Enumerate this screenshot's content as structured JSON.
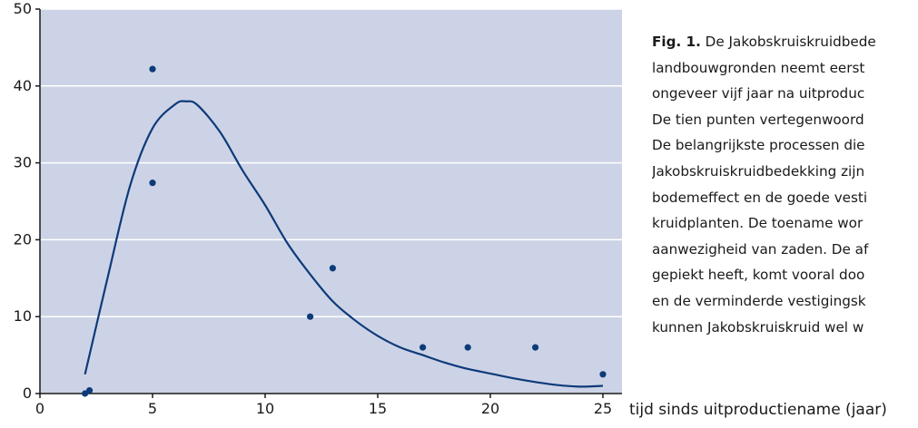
{
  "chart_data": {
    "type": "scatter",
    "xlabel": "tijd sinds uitproductiename (jaar)",
    "ylabel": "",
    "xlim": [
      0,
      26
    ],
    "ylim": [
      0,
      50
    ],
    "x_ticks": [
      0,
      5,
      10,
      15,
      20,
      25
    ],
    "y_ticks": [
      0,
      10,
      20,
      30,
      40,
      50
    ],
    "grid": "horizontal",
    "background": "#cdd3e6",
    "series": [
      {
        "kind": "points",
        "color": "#0d3b7a",
        "points": [
          {
            "x": 2,
            "y": 0
          },
          {
            "x": 2.2,
            "y": 0.4
          },
          {
            "x": 5,
            "y": 42.2
          },
          {
            "x": 5,
            "y": 27.4
          },
          {
            "x": 12,
            "y": 10
          },
          {
            "x": 13,
            "y": 16.3
          },
          {
            "x": 17,
            "y": 6
          },
          {
            "x": 19,
            "y": 6
          },
          {
            "x": 22,
            "y": 6
          },
          {
            "x": 25,
            "y": 2.5
          }
        ]
      },
      {
        "kind": "fitted-curve",
        "color": "#0d3b7a",
        "points": [
          {
            "x": 2,
            "y": 2.5
          },
          {
            "x": 3,
            "y": 15
          },
          {
            "x": 4,
            "y": 27
          },
          {
            "x": 5,
            "y": 34.5
          },
          {
            "x": 6,
            "y": 37.6
          },
          {
            "x": 6.5,
            "y": 38
          },
          {
            "x": 7,
            "y": 37.5
          },
          {
            "x": 8,
            "y": 34
          },
          {
            "x": 9,
            "y": 29
          },
          {
            "x": 10,
            "y": 24.5
          },
          {
            "x": 11,
            "y": 19.5
          },
          {
            "x": 12,
            "y": 15.5
          },
          {
            "x": 13,
            "y": 12
          },
          {
            "x": 14,
            "y": 9.5
          },
          {
            "x": 15,
            "y": 7.5
          },
          {
            "x": 16,
            "y": 6
          },
          {
            "x": 17,
            "y": 5
          },
          {
            "x": 18,
            "y": 4
          },
          {
            "x": 19,
            "y": 3.2
          },
          {
            "x": 20,
            "y": 2.6
          },
          {
            "x": 21,
            "y": 2
          },
          {
            "x": 22,
            "y": 1.5
          },
          {
            "x": 23,
            "y": 1.1
          },
          {
            "x": 24,
            "y": 0.9
          },
          {
            "x": 25,
            "y": 1
          }
        ]
      }
    ]
  },
  "caption": {
    "lines": [
      {
        "bold": "Fig. 1.",
        "text": " De Jakobskruiskruidbede"
      },
      {
        "bold": "",
        "text": "landbouwgronden neemt eerst"
      },
      {
        "bold": "",
        "text": "ongeveer vijf jaar na uitproduc"
      },
      {
        "bold": "",
        "text": "De tien punten vertegenwoord"
      },
      {
        "bold": "",
        "text": "De belangrijkste processen die"
      },
      {
        "bold": "",
        "text": "Jakobskruiskruidbedekking zijn"
      },
      {
        "bold": "",
        "text": "bodemeffect en de goede vesti"
      },
      {
        "bold": "",
        "text": "kruidplanten. De toename wor"
      },
      {
        "bold": "",
        "text": "aanwezigheid van zaden. De af"
      },
      {
        "bold": "",
        "text": "gepiekt heeft, komt vooral doo"
      },
      {
        "bold": "",
        "text": "en de verminderde vestigingsk"
      },
      {
        "bold": "",
        "text": "kunnen Jakobskruiskruid wel w"
      }
    ]
  }
}
